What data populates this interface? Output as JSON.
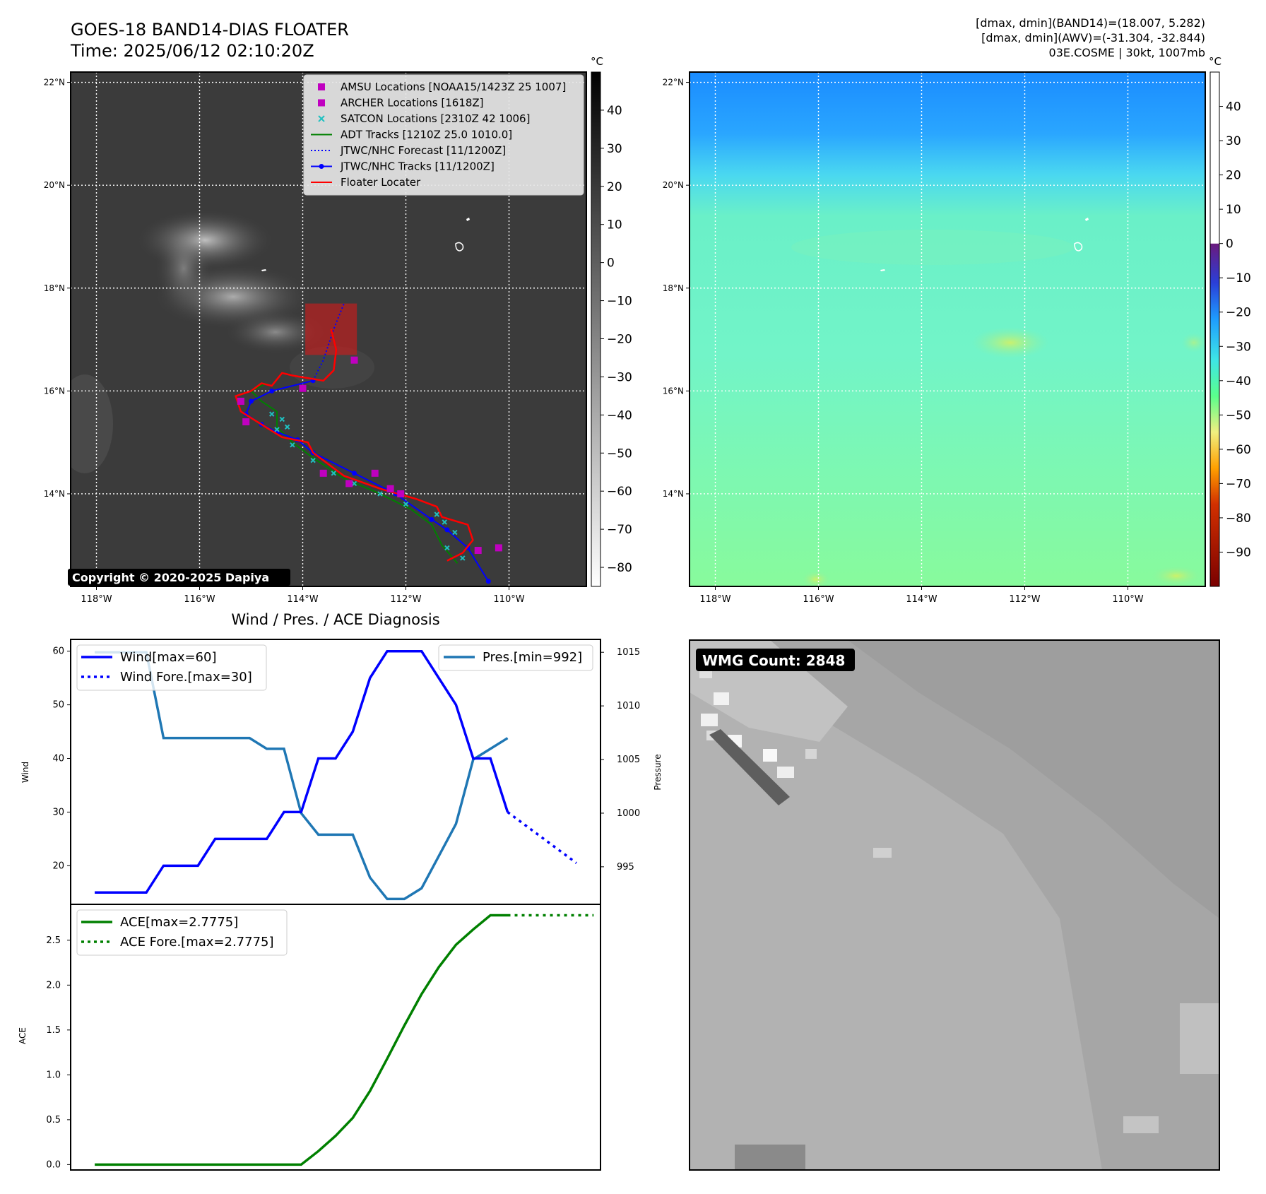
{
  "header": {
    "title_line1": "GOES-18 BAND14-DIAS FLOATER",
    "title_line2": "Time: 2025/06/12 02:10:20Z",
    "info_line1": "[dmax, dmin](BAND14)=(18.007, 5.282)",
    "info_line2": "[dmax, dmin](AWV)=(-31.304, -32.844)",
    "info_line3": "03E.COSME | 30kt, 1007mb"
  },
  "map_axes": {
    "lon_ticks": [
      "118°W",
      "116°W",
      "114°W",
      "112°W",
      "110°W"
    ],
    "lat_ticks": [
      "22°N",
      "20°N",
      "18°N",
      "16°N",
      "14°N"
    ],
    "lon_values": [
      -118,
      -116,
      -114,
      -112,
      -110
    ],
    "lat_values": [
      22,
      20,
      18,
      16,
      14
    ],
    "lon_range": [
      -118.5,
      -108.5
    ],
    "lat_range": [
      12.2,
      22.2
    ]
  },
  "colorbar_band14": {
    "unit": "°C",
    "ticks": [
      "40",
      "30",
      "20",
      "10",
      "0",
      "−10",
      "−20",
      "−30",
      "−40",
      "−50",
      "−60",
      "−70",
      "−80"
    ],
    "values": [
      40,
      30,
      20,
      10,
      0,
      -10,
      -20,
      -30,
      -40,
      -50,
      -60,
      -70,
      -80
    ],
    "range": [
      -85,
      50
    ]
  },
  "colorbar_awv": {
    "unit": "°C",
    "ticks": [
      "40",
      "30",
      "20",
      "10",
      "0",
      "−10",
      "−20",
      "−30",
      "−40",
      "−50",
      "−60",
      "−70",
      "−80",
      "−90"
    ],
    "values": [
      40,
      30,
      20,
      10,
      0,
      -10,
      -20,
      -30,
      -40,
      -50,
      -60,
      -70,
      -80,
      -90
    ],
    "range": [
      -100,
      50
    ]
  },
  "legend_map": {
    "items": [
      {
        "label": "AMSU Locations [NOAA15/1423Z 25 1007]",
        "kind": "square",
        "color": "#c000c0"
      },
      {
        "label": "ARCHER Locations [1618Z]",
        "kind": "square",
        "color": "#c000c0"
      },
      {
        "label": "SATCON Locations [2310Z 42 1006]",
        "kind": "x",
        "color": "#20c0c0"
      },
      {
        "label": "ADT Tracks [1210Z 25.0 1010.0]",
        "kind": "line",
        "color": "#008000"
      },
      {
        "label": "JTWC/NHC Forecast [11/1200Z]",
        "kind": "dotted",
        "color": "#0000ff"
      },
      {
        "label": "JTWC/NHC Tracks [11/1200Z]",
        "kind": "line-dot",
        "color": "#0000ff"
      },
      {
        "label": "Floater Locater",
        "kind": "line",
        "color": "#ff0000"
      }
    ]
  },
  "copyright": "Copyright © 2020-2025 Dapiya",
  "tracks": {
    "jtwc": [
      [
        -110.4,
        12.3
      ],
      [
        -110.8,
        12.95
      ],
      [
        -111.2,
        13.3
      ],
      [
        -111.5,
        13.5
      ],
      [
        -112.2,
        14.0
      ],
      [
        -113.0,
        14.4
      ],
      [
        -113.8,
        14.8
      ],
      [
        -114.1,
        15.05
      ],
      [
        -114.5,
        15.2
      ],
      [
        -114.8,
        15.35
      ],
      [
        -115.1,
        15.55
      ],
      [
        -115.0,
        15.8
      ],
      [
        -114.6,
        16.0
      ],
      [
        -113.8,
        16.2
      ]
    ],
    "forecast": [
      [
        -113.8,
        16.2
      ],
      [
        -113.6,
        16.6
      ],
      [
        -113.4,
        17.2
      ],
      [
        -113.2,
        17.7
      ]
    ],
    "floater": [
      [
        -111.2,
        12.7
      ],
      [
        -110.9,
        12.85
      ],
      [
        -110.7,
        13.1
      ],
      [
        -110.8,
        13.4
      ],
      [
        -111.3,
        13.55
      ],
      [
        -111.4,
        13.75
      ],
      [
        -111.8,
        13.9
      ],
      [
        -112.5,
        14.1
      ],
      [
        -113.2,
        14.35
      ],
      [
        -113.8,
        14.8
      ],
      [
        -113.9,
        15.0
      ],
      [
        -114.4,
        15.1
      ],
      [
        -114.8,
        15.35
      ],
      [
        -115.2,
        15.6
      ],
      [
        -115.3,
        15.9
      ],
      [
        -115.0,
        16.0
      ],
      [
        -114.8,
        16.15
      ],
      [
        -114.6,
        16.1
      ],
      [
        -114.4,
        16.35
      ],
      [
        -114.2,
        16.3
      ],
      [
        -113.6,
        16.2
      ],
      [
        -113.4,
        16.4
      ],
      [
        -113.35,
        16.8
      ],
      [
        -113.45,
        17.2
      ]
    ],
    "adt": [
      [
        -111.0,
        12.65
      ],
      [
        -111.3,
        13.0
      ],
      [
        -111.5,
        13.4
      ],
      [
        -111.9,
        13.7
      ],
      [
        -112.5,
        14.0
      ],
      [
        -113.2,
        14.3
      ],
      [
        -113.8,
        14.7
      ],
      [
        -114.2,
        15.0
      ],
      [
        -114.5,
        15.3
      ],
      [
        -114.5,
        15.6
      ],
      [
        -114.8,
        15.8
      ],
      [
        -115.0,
        16.0
      ],
      [
        -114.9,
        16.05
      ],
      [
        -114.7,
        16.15
      ]
    ],
    "satcon": [
      [
        -111.4,
        13.6
      ],
      [
        -111.25,
        13.45
      ],
      [
        -111.05,
        13.25
      ],
      [
        -111.2,
        12.95
      ],
      [
        -110.9,
        12.75
      ],
      [
        -112.0,
        13.8
      ],
      [
        -112.5,
        14.0
      ],
      [
        -113.0,
        14.2
      ],
      [
        -113.4,
        14.4
      ],
      [
        -113.8,
        14.65
      ],
      [
        -114.2,
        14.95
      ],
      [
        -114.5,
        15.25
      ],
      [
        -114.6,
        15.55
      ],
      [
        -114.4,
        15.45
      ],
      [
        -114.3,
        15.3
      ]
    ],
    "amsu": [
      [
        -113.0,
        16.6
      ],
      [
        -114.0,
        16.05
      ],
      [
        -110.2,
        12.95
      ],
      [
        -110.6,
        12.9
      ],
      [
        -112.1,
        14.0
      ],
      [
        -112.3,
        14.1
      ],
      [
        -112.6,
        14.4
      ],
      [
        -113.1,
        14.2
      ],
      [
        -113.6,
        14.4
      ],
      [
        -115.1,
        15.4
      ],
      [
        -115.2,
        15.8
      ]
    ],
    "floater_box": {
      "lon": [
        -113.95,
        -112.95
      ],
      "lat": [
        16.7,
        17.7
      ]
    }
  },
  "diag": {
    "title": "Wind / Pres. / ACE Diagnosis",
    "wind_ylabel": "Wind",
    "pres_ylabel": "Pressure",
    "ace_ylabel": "ACE",
    "wind_legend": "Wind[max=60]",
    "wind_fore_legend": "Wind Fore.[max=30]",
    "pres_legend": "Pres.[min=992]",
    "ace_legend": "ACE[max=2.7775]",
    "ace_fore_legend": "ACE Fore.[max=2.7775]",
    "wind_ticks": [
      "60",
      "50",
      "40",
      "30",
      "20"
    ],
    "pres_ticks": [
      "1015",
      "1010",
      "1005",
      "1000",
      "995"
    ],
    "ace_ticks": [
      "2.5",
      "2.0",
      "1.5",
      "1.0",
      "0.5",
      "0.0"
    ]
  },
  "chart_data": [
    {
      "type": "line",
      "x": [
        0,
        1,
        2,
        3,
        4,
        5,
        6,
        7,
        8,
        9,
        10,
        11,
        12,
        13,
        14,
        15,
        16,
        17,
        18,
        19,
        20,
        21,
        22,
        23,
        24
      ],
      "series": [
        {
          "name": "Wind[max=60]",
          "values": [
            15,
            15,
            15,
            15,
            20,
            20,
            20,
            25,
            25,
            25,
            25,
            30,
            30,
            40,
            40,
            45,
            55,
            60,
            60,
            60,
            55,
            50,
            40,
            40,
            30
          ]
        },
        {
          "name": "Wind Fore.[max=30]",
          "x": [
            24,
            28
          ],
          "values": [
            30,
            20.5
          ]
        },
        {
          "name": "Pres.[min=992]",
          "values": [
            1015,
            1015,
            1015,
            1015,
            1007,
            1007,
            1007,
            1007,
            1007,
            1007,
            1006,
            1006,
            1000,
            998,
            998,
            998,
            994,
            992,
            992,
            993,
            996,
            999,
            1005,
            1006,
            1007
          ]
        }
      ],
      "ylim_wind": [
        12.8,
        62.2
      ],
      "ylim_pres": [
        991.5,
        1016.2
      ],
      "xlim": [
        -1.4,
        29.4
      ]
    },
    {
      "type": "line",
      "x": [
        0,
        1,
        2,
        3,
        4,
        5,
        6,
        7,
        8,
        9,
        10,
        11,
        12,
        13,
        14,
        15,
        16,
        17,
        18,
        19,
        20,
        21,
        22,
        23,
        24
      ],
      "series": [
        {
          "name": "ACE[max=2.7775]",
          "values": [
            0,
            0,
            0,
            0,
            0,
            0,
            0,
            0,
            0,
            0,
            0,
            0,
            0,
            0.15,
            0.32,
            0.52,
            0.82,
            1.18,
            1.55,
            1.9,
            2.2,
            2.45,
            2.62,
            2.7775,
            2.7775
          ]
        },
        {
          "name": "ACE Fore.[max=2.7775]",
          "x": [
            24,
            29
          ],
          "values": [
            2.7775,
            2.7775
          ]
        }
      ],
      "ylim": [
        -0.06,
        2.9
      ],
      "xlim": [
        -1.4,
        29.4
      ]
    }
  ],
  "wmg": {
    "label": "WMG Count: 2848"
  }
}
